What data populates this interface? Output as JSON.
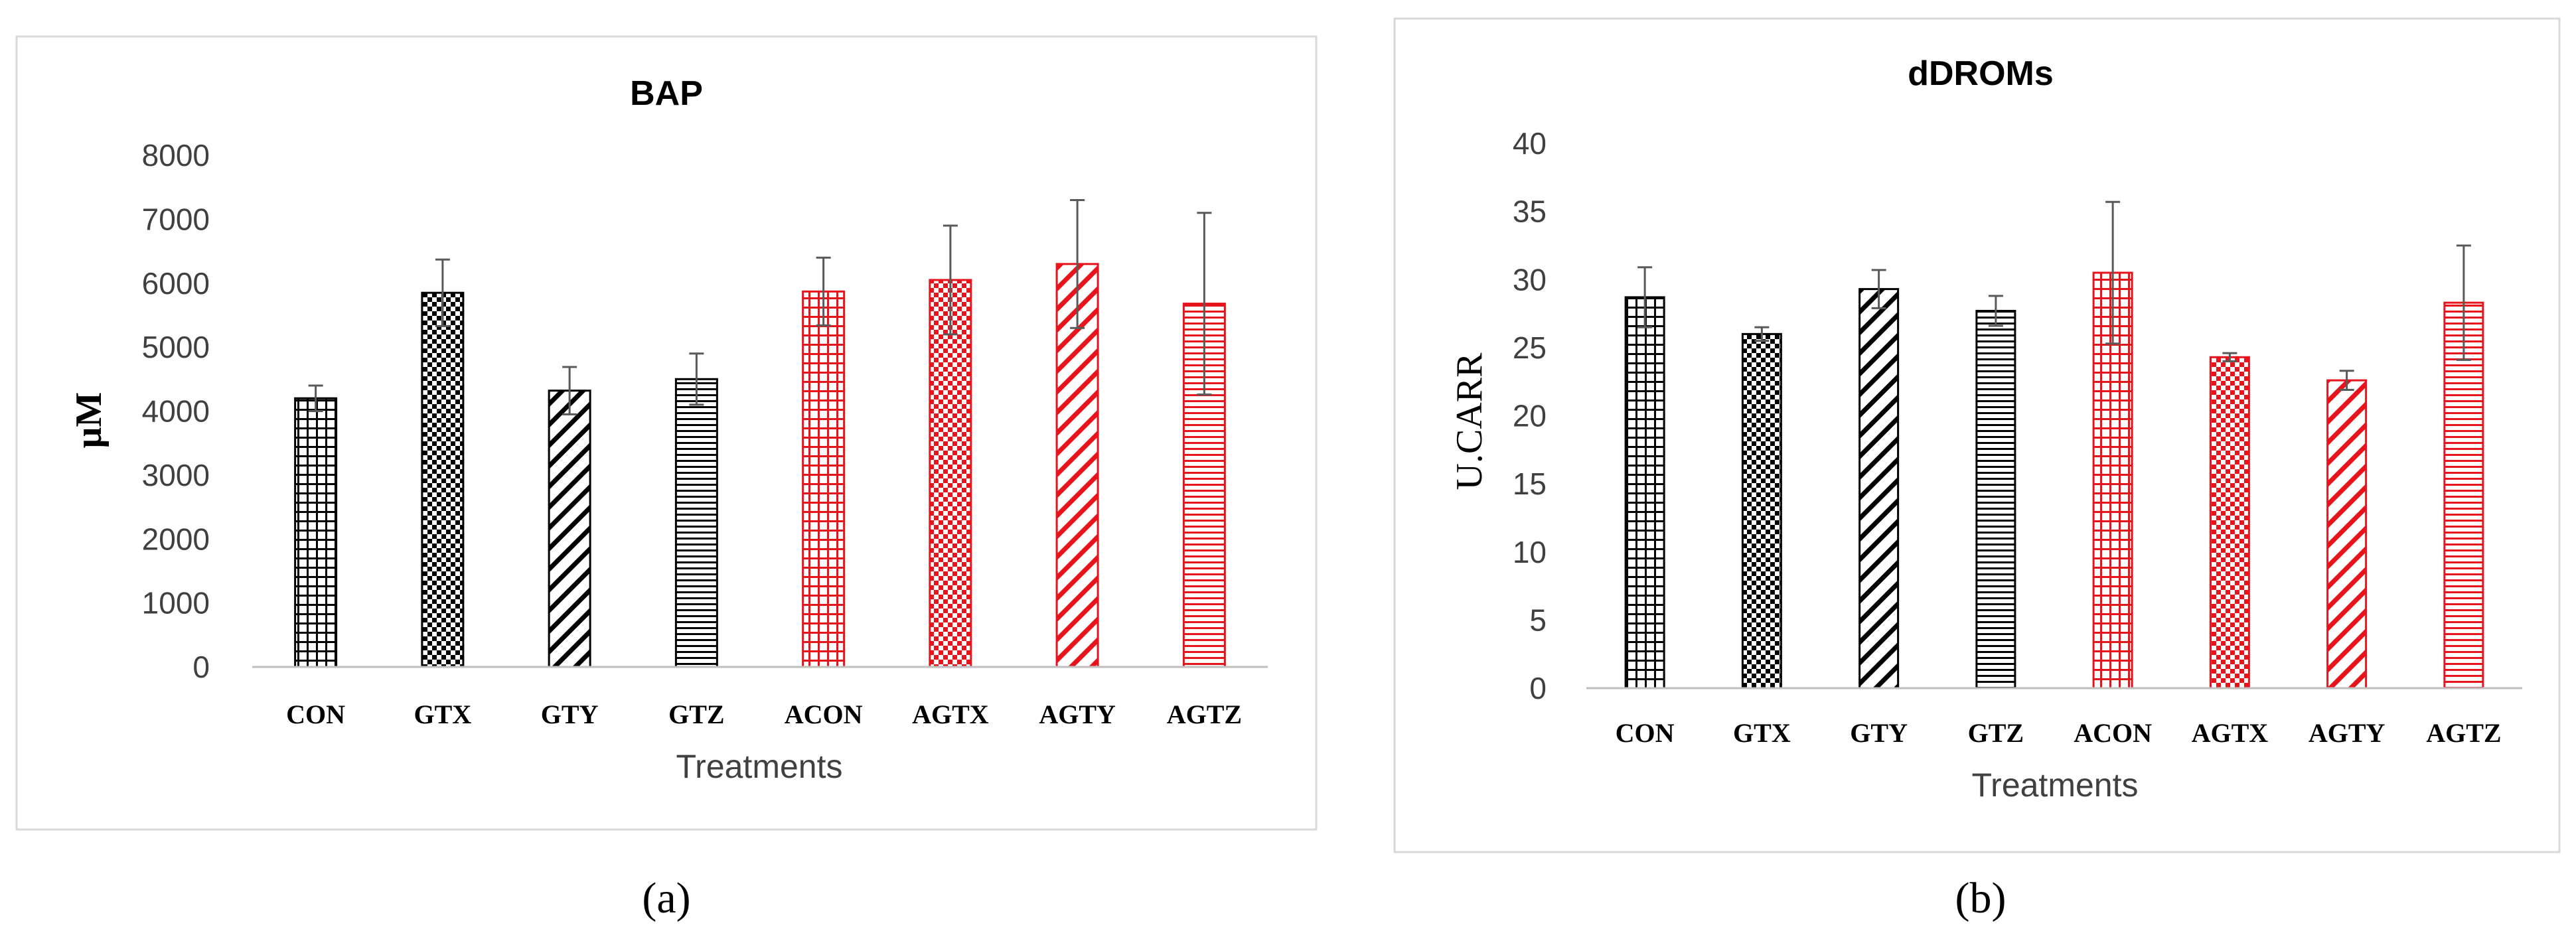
{
  "colors": {
    "black": "#000000",
    "red": "#e8141c",
    "frame": "#d9d9d9",
    "axis": "#bfbfbf"
  },
  "chart_data": [
    {
      "type": "bar",
      "panel_label": "(a)",
      "title": "BAP",
      "xlabel": "Treatments",
      "ylabel": "μM",
      "ylim": [
        0,
        8000
      ],
      "ytick_step": 1000,
      "ytick_labels": [
        "0",
        "1000",
        "2000",
        "3000",
        "4000",
        "5000",
        "6000",
        "7000",
        "8000"
      ],
      "grid": false,
      "categories": [
        "CON",
        "GTX",
        "GTY",
        "GTZ",
        "ACON",
        "AGTX",
        "AGTY",
        "AGTZ"
      ],
      "values": [
        4200,
        5850,
        4320,
        4500,
        5870,
        6050,
        6300,
        5680
      ],
      "error": [
        200,
        520,
        370,
        400,
        530,
        850,
        1000,
        1420
      ],
      "patterns": [
        "grid",
        "checker",
        "diagonal",
        "hlines",
        "grid",
        "checker",
        "diagonal",
        "hlines"
      ],
      "bar_colors": [
        "black",
        "black",
        "black",
        "black",
        "red",
        "red",
        "red",
        "red"
      ]
    },
    {
      "type": "bar",
      "panel_label": "(b)",
      "title": "dDROMs",
      "xlabel": "Treatments",
      "ylabel": "U.CARR",
      "ylim": [
        0,
        40
      ],
      "ytick_step": 5,
      "ytick_labels": [
        "0",
        "5",
        "10",
        "15",
        "20",
        "25",
        "30",
        "35",
        "40"
      ],
      "grid": false,
      "categories": [
        "CON",
        "GTX",
        "GTY",
        "GTZ",
        "ACON",
        "AGTX",
        "AGTY",
        "AGTZ"
      ],
      "values": [
        28.7,
        26.0,
        29.3,
        27.7,
        30.5,
        24.3,
        22.6,
        28.3
      ],
      "error": [
        2.2,
        0.5,
        1.4,
        1.1,
        5.2,
        0.3,
        0.7,
        4.2
      ],
      "patterns": [
        "grid",
        "checker",
        "diagonal",
        "hlines",
        "grid",
        "checker",
        "diagonal",
        "hlines"
      ],
      "bar_colors": [
        "black",
        "black",
        "black",
        "black",
        "red",
        "red",
        "red",
        "red"
      ]
    }
  ]
}
